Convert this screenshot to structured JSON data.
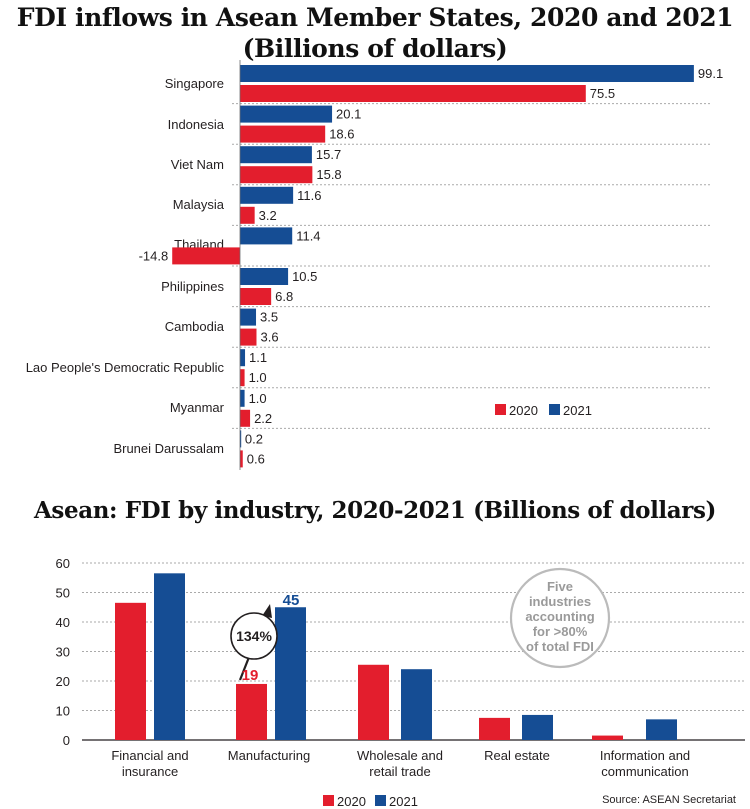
{
  "colors": {
    "y2020": "#e31e2d",
    "y2021": "#154d94",
    "grid": "#aaaaaa",
    "circle": "#bbbbbb",
    "circle_text": "#9a9a9a"
  },
  "top_chart": {
    "title_line1": "FDI inflows in Asean Member States, 2020 and 2021",
    "title_line2": "(Billions of dollars)",
    "legend": {
      "y2020": "2020",
      "y2021": "2021"
    }
  },
  "bottom_chart": {
    "title": "Asean: FDI by industry, 2020-2021 (Billions of dollars)",
    "legend": {
      "y2020": "2020",
      "y2021": "2021"
    },
    "annotation": {
      "growth": "134%",
      "label_2020": "19",
      "label_2021": "45"
    },
    "callout_lines": [
      "Five",
      "industries",
      "accounting",
      "for >80%",
      "of total FDI"
    ]
  },
  "source": "Source: ASEAN Secretariat",
  "chart_data": [
    {
      "type": "bar",
      "orientation": "horizontal",
      "title": "FDI inflows in Asean Member States, 2020 and 2021 (Billions of dollars)",
      "categories": [
        "Singapore",
        "Indonesia",
        "Viet Nam",
        "Malaysia",
        "Thailand",
        "Philippines",
        "Cambodia",
        "Lao People's Democratic Republic",
        "Myanmar",
        "Brunei Darussalam"
      ],
      "series": [
        {
          "name": "2021",
          "values": [
            99.1,
            20.1,
            15.7,
            11.6,
            11.4,
            10.5,
            3.5,
            1.1,
            1.0,
            0.2
          ]
        },
        {
          "name": "2020",
          "values": [
            75.5,
            18.6,
            15.8,
            3.2,
            -14.8,
            6.8,
            3.6,
            1.0,
            2.2,
            0.6
          ]
        }
      ],
      "value_labels": {
        "2021": [
          "99.1",
          "20.1",
          "15.7",
          "11.6",
          "11.4",
          "10.5",
          "3.5",
          "1.1",
          "1.0",
          "0.2"
        ],
        "2020": [
          "75.5",
          "18.6",
          "15.8",
          "3.2",
          "-14.8",
          "6.8",
          "3.6",
          "1.0",
          "2.2",
          "0.6"
        ]
      },
      "grid": true,
      "legend": "bottom-right"
    },
    {
      "type": "bar",
      "title": "Asean: FDI by industry, 2020-2021 (Billions of dollars)",
      "categories": [
        [
          "Financial and",
          "insurance"
        ],
        [
          "Manufacturing"
        ],
        [
          "Wholesale and",
          "retail trade"
        ],
        [
          "Real estate"
        ],
        [
          "Information and",
          "communication"
        ]
      ],
      "series": [
        {
          "name": "2020",
          "values": [
            46.5,
            19,
            25.5,
            7.5,
            1.5
          ]
        },
        {
          "name": "2021",
          "values": [
            56.5,
            45,
            24,
            8.5,
            7
          ]
        }
      ],
      "ylim": [
        0,
        60
      ],
      "yticks": [
        "0",
        "10",
        "20",
        "30",
        "40",
        "50",
        "60"
      ],
      "grid": true,
      "legend": "bottom-center"
    }
  ]
}
